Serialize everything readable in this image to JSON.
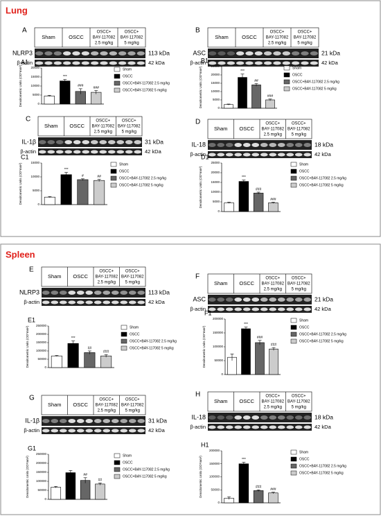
{
  "sections": [
    {
      "title": "Lung"
    },
    {
      "title": "Spleen"
    }
  ],
  "blots": [
    {
      "letter": "A",
      "protein": "NLRP3",
      "kda": "113 kDa",
      "actin": "β-actin",
      "actin_kda": "42 kDa",
      "lanes": [
        [
          "Sham"
        ],
        [
          "OSCC"
        ],
        [
          "OSCC+",
          "BAY-117082",
          "2.5 mg/kg"
        ],
        [
          "OSCC+",
          "BAY-117082",
          "5 mg/kg"
        ]
      ]
    },
    {
      "letter": "B",
      "protein": "ASC",
      "kda": "21 kDa",
      "actin": "β-actin",
      "actin_kda": "42 kDa",
      "lanes": [
        [
          "Sham"
        ],
        [
          "OSCC"
        ],
        [
          "OSCC+",
          "BAY-117082",
          "2.5 mg/kg"
        ],
        [
          "OSCC+",
          "BAY-117082",
          "5 mg/kg"
        ]
      ]
    },
    {
      "letter": "C",
      "protein": "IL-1β",
      "kda": "31 kDa",
      "actin": "β-actin",
      "actin_kda": "42 kDa",
      "lanes": [
        [
          "Sham"
        ],
        [
          "OSCC"
        ],
        [
          "OSCC+",
          "BAY-117082",
          "2.5 mg/kg"
        ],
        [
          "OSCC+",
          "BAY-117082",
          "5 mg/kg"
        ]
      ]
    },
    {
      "letter": "D",
      "protein": "IL-18",
      "kda": "18 kDa",
      "actin": "β-actin",
      "actin_kda": "42 kDa",
      "lanes": [
        [
          "Sham"
        ],
        [
          "OSCC"
        ],
        [
          "OSCC+",
          "BAY-117082",
          "2.5 mg/kg"
        ],
        [
          "OSCC+",
          "BAY-117082",
          "5 mg/kg"
        ]
      ]
    },
    {
      "letter": "E",
      "protein": "NLRP3",
      "kda": "113 kDa",
      "actin": "β-actin",
      "actin_kda": "42 kDa",
      "lanes": [
        [
          "Sham"
        ],
        [
          "OSCC"
        ],
        [
          "OSCC+",
          "BAY-117082",
          "2.5 mg/kg"
        ],
        [
          "OSCC+",
          "BAY-117082",
          "5 mg/kg"
        ]
      ]
    },
    {
      "letter": "F",
      "protein": "ASC",
      "kda": "21 kDa",
      "actin": "β-actin",
      "actin_kda": "42 kDa",
      "lanes": [
        [
          "Sham"
        ],
        [
          "OSCC"
        ],
        [
          "OSCC+",
          "BAY-117082",
          "2.5 mg/kg"
        ],
        [
          "OSCC+",
          "BAY-117082",
          "5 mg/kg"
        ]
      ]
    },
    {
      "letter": "G",
      "protein": "IL-1β",
      "kda": "31 kDa",
      "actin": "β-actin",
      "actin_kda": "42 kDa",
      "lanes": [
        [
          "Sham"
        ],
        [
          "OSCC"
        ],
        [
          "OSCC+",
          "BAY-117082",
          "2.5 mg/kg"
        ],
        [
          "OSCC+",
          "BAY-117082",
          "5 mg/kg"
        ]
      ]
    },
    {
      "letter": "H",
      "protein": "IL-18",
      "kda": "18 kDa",
      "actin": "β-actin",
      "actin_kda": "42 kDa",
      "lanes": [
        [
          "Sham"
        ],
        [
          "OSCC"
        ],
        [
          "OSCC+",
          "BAY-117082",
          "2.5 mg/kg"
        ],
        [
          "OSCC+",
          "BAY-117082",
          "5 mg/kg"
        ]
      ]
    }
  ],
  "chart_data": [
    {
      "type": "bar",
      "label": "A1",
      "ylabel": "Densitometric Units (OD*mm²)",
      "categories": [
        "Sham",
        "OSCC",
        "OSCC+BAY-117082 2.5 mg/kg",
        "OSCC+BAY-117082 5 mg/kg"
      ],
      "colors": [
        "#ffffff",
        "#000000",
        "#666666",
        "#cccccc"
      ],
      "values": [
        4500,
        12800,
        7000,
        6500
      ],
      "errors": [
        300,
        800,
        1500,
        1000
      ],
      "value_annotations": [
        null,
        "***",
        "###",
        "###"
      ],
      "ylim": [
        0,
        20000
      ],
      "yticks": [
        0,
        5000,
        10000,
        15000,
        20000
      ]
    },
    {
      "type": "bar",
      "label": "B1",
      "ylabel": "Densitometric Units (OD*mm²)",
      "categories": [
        "Sham",
        "OSCC",
        "OSCC+BAY-117082 2.5 mg/kg",
        "OSCC+BAY-117082 5 mg/kg"
      ],
      "colors": [
        "#ffffff",
        "#000000",
        "#666666",
        "#cccccc"
      ],
      "values": [
        2200,
        18500,
        14000,
        5000
      ],
      "errors": [
        300,
        2000,
        800,
        500
      ],
      "value_annotations": [
        null,
        "***",
        "##",
        "###"
      ],
      "ylim": [
        0,
        25000
      ],
      "yticks": [
        0,
        5000,
        10000,
        15000,
        20000,
        25000
      ]
    },
    {
      "type": "bar",
      "label": "C1",
      "ylabel": "Densitometric Units (OD*mm²)",
      "categories": [
        "Sham",
        "OSCC",
        "OSCC+BAY-117082 2.5 mg/kg",
        "OSCC+BAY-117082 5 mg/kg"
      ],
      "colors": [
        "#ffffff",
        "#000000",
        "#666666",
        "#cccccc"
      ],
      "values": [
        2700,
        10800,
        9000,
        8700
      ],
      "errors": [
        200,
        800,
        300,
        400
      ],
      "value_annotations": [
        null,
        "***",
        "#",
        "##"
      ],
      "ylim": [
        0,
        15000
      ],
      "yticks": [
        0,
        5000,
        10000,
        15000
      ]
    },
    {
      "type": "bar",
      "label": "D1",
      "ylabel": "Densitometric Units (OD*mm²)",
      "categories": [
        "Sham",
        "OSCC",
        "OSCC+BAY-117082 2.5 mg/kg",
        "OSCC+BAY-117082 5 mg/kg"
      ],
      "colors": [
        "#ffffff",
        "#000000",
        "#666666",
        "#cccccc"
      ],
      "values": [
        4500,
        15500,
        9500,
        4500
      ],
      "errors": [
        300,
        700,
        500,
        300
      ],
      "value_annotations": [
        null,
        "***",
        "###",
        "###"
      ],
      "ylim": [
        0,
        25000
      ],
      "yticks": [
        0,
        5000,
        10000,
        15000,
        20000,
        25000
      ]
    },
    {
      "type": "bar",
      "label": "E1",
      "ylabel": "Densitometric Units (OD*mm²)",
      "categories": [
        "Sham",
        "OSCC",
        "OSCC+BAY-117082 2.5 mg/kg",
        "OSCC+BAY-117082 5 mg/kg"
      ],
      "colors": [
        "#ffffff",
        "#000000",
        "#666666",
        "#cccccc"
      ],
      "values": [
        70000,
        145000,
        90000,
        70000
      ],
      "errors": [
        3000,
        15000,
        10000,
        8000
      ],
      "value_annotations": [
        null,
        "***",
        "##",
        "###"
      ],
      "ylim": [
        0,
        250000
      ],
      "yticks": [
        0,
        50000,
        100000,
        150000,
        200000,
        250000
      ]
    },
    {
      "type": "bar",
      "label": "F1",
      "ylabel": "Densitometric Units (OD*mm²)",
      "categories": [
        "Sham",
        "OSCC",
        "OSCC+BAY-117082 2.5 mg/kg",
        "OSCC+BAY-117082 5 mg/kg"
      ],
      "colors": [
        "#ffffff",
        "#000000",
        "#666666",
        "#cccccc"
      ],
      "values": [
        62000,
        165000,
        115000,
        92000
      ],
      "errors": [
        12000,
        6000,
        8000,
        5000
      ],
      "value_annotations": [
        null,
        "***",
        "###",
        "###"
      ],
      "ylim": [
        0,
        200000
      ],
      "yticks": [
        0,
        50000,
        100000,
        150000,
        200000
      ]
    },
    {
      "type": "bar",
      "label": "G1",
      "ylabel": "Densitometric Units (OD*mm²)",
      "categories": [
        "Sham",
        "OSCC",
        "OSCC+BAY-117082 2.5 mg/kg",
        "OSCC+BAY-117082 5 mg/kg"
      ],
      "colors": [
        "#ffffff",
        "#000000",
        "#666666",
        "#cccccc"
      ],
      "values": [
        68000,
        148000,
        105000,
        85000
      ],
      "errors": [
        4000,
        12000,
        15000,
        6000
      ],
      "value_annotations": [
        null,
        null,
        "##",
        "##"
      ],
      "ylim": [
        0,
        250000
      ],
      "yticks": [
        0,
        50000,
        100000,
        150000,
        200000,
        250000
      ]
    },
    {
      "type": "bar",
      "label": "H1",
      "ylabel": "Densitometric Units (OD*mm²)",
      "categories": [
        "Sham",
        "OSCC",
        "OSCC+BAY-117082 2.5 mg/kg",
        "OSCC+BAY-117082 5 mg/kg"
      ],
      "colors": [
        "#ffffff",
        "#000000",
        "#666666",
        "#cccccc"
      ],
      "values": [
        18000,
        150000,
        47000,
        38000
      ],
      "errors": [
        5000,
        6000,
        3000,
        3000
      ],
      "value_annotations": [
        null,
        "***",
        "###",
        "###"
      ],
      "ylim": [
        0,
        200000
      ],
      "yticks": [
        0,
        50000,
        100000,
        150000,
        200000
      ]
    }
  ]
}
